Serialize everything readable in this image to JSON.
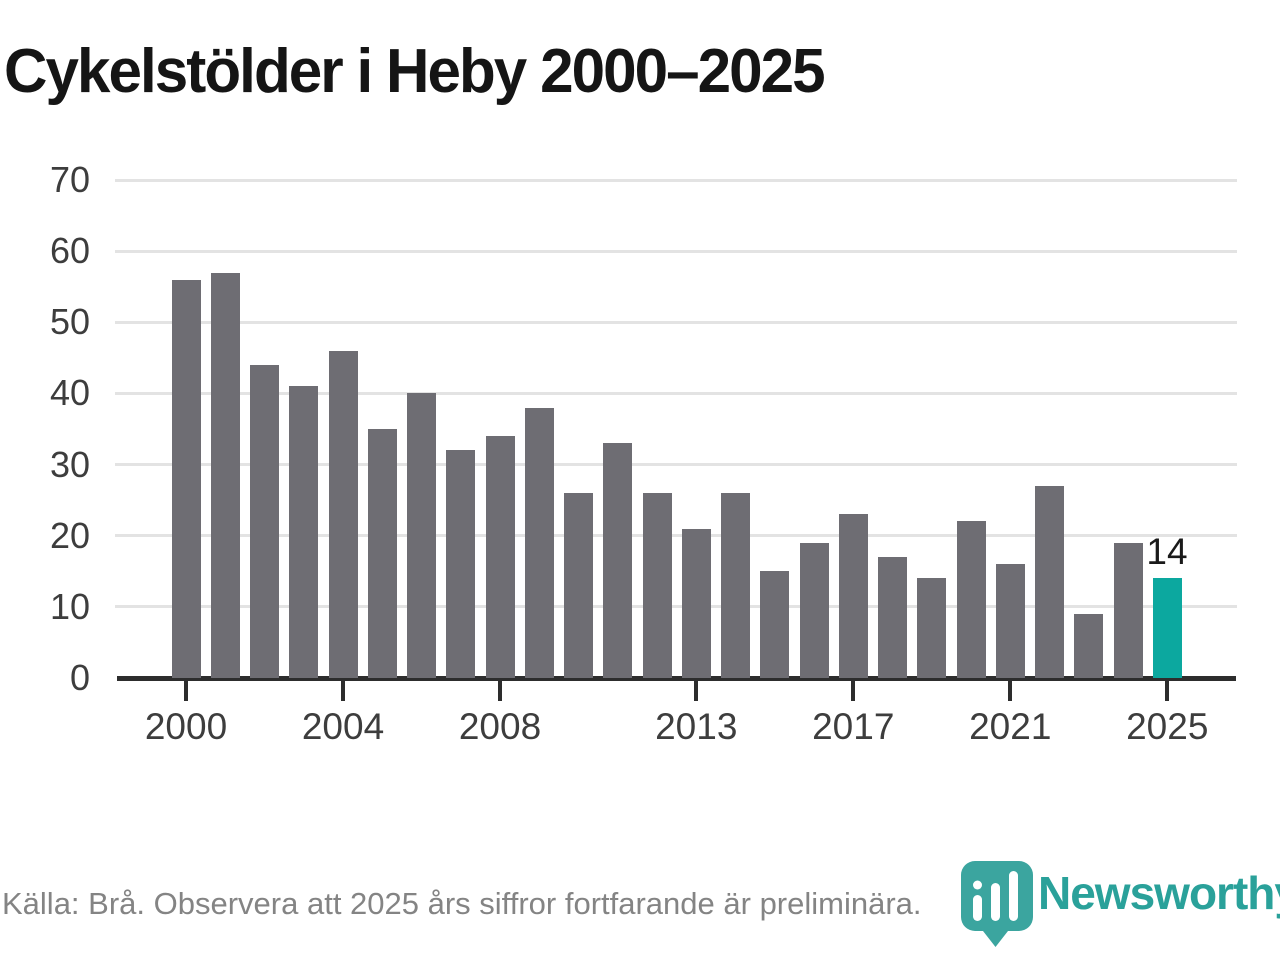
{
  "title": "Cykelstölder i Heby 2000–2025",
  "source_note": "Källa: Brå. Observera att 2025 års siffror fortfarande är preliminära.",
  "brand": {
    "name": "Newsworthy"
  },
  "annotation": {
    "label": "14"
  },
  "colors": {
    "bar": "#6e6d73",
    "highlight_bar": "#0ca89f",
    "gridline": "#e3e3e3",
    "axis": "#2d2d2d",
    "title": "#151515",
    "tick_label": "#3d3d3d",
    "source_text": "#848484",
    "brand_teal": "#2aa19a",
    "brand_icon_teal": "#3ba59f",
    "annotation_text": "#1a1a1a"
  },
  "chart_data": {
    "type": "bar",
    "title": "Cykelstölder i Heby 2000–2025",
    "xlabel": "",
    "ylabel": "",
    "x": [
      2000,
      2001,
      2002,
      2003,
      2004,
      2005,
      2006,
      2007,
      2008,
      2009,
      2010,
      2011,
      2012,
      2013,
      2014,
      2015,
      2016,
      2017,
      2018,
      2019,
      2020,
      2021,
      2022,
      2023,
      2024,
      2025
    ],
    "values": [
      56,
      57,
      44,
      41,
      46,
      35,
      40,
      32,
      34,
      38,
      26,
      33,
      26,
      21,
      26,
      15,
      19,
      23,
      17,
      14,
      22,
      16,
      27,
      9,
      19,
      14
    ],
    "highlight_x": 2025,
    "highlight_value": 14,
    "data_label": {
      "x": 2025,
      "text": "14"
    },
    "ylim": [
      0,
      70
    ],
    "yticks": [
      0,
      10,
      20,
      30,
      40,
      50,
      60,
      70
    ],
    "xticks": [
      2000,
      2004,
      2008,
      2013,
      2017,
      2021,
      2025
    ],
    "grid": "horizontal",
    "legend": "none"
  }
}
